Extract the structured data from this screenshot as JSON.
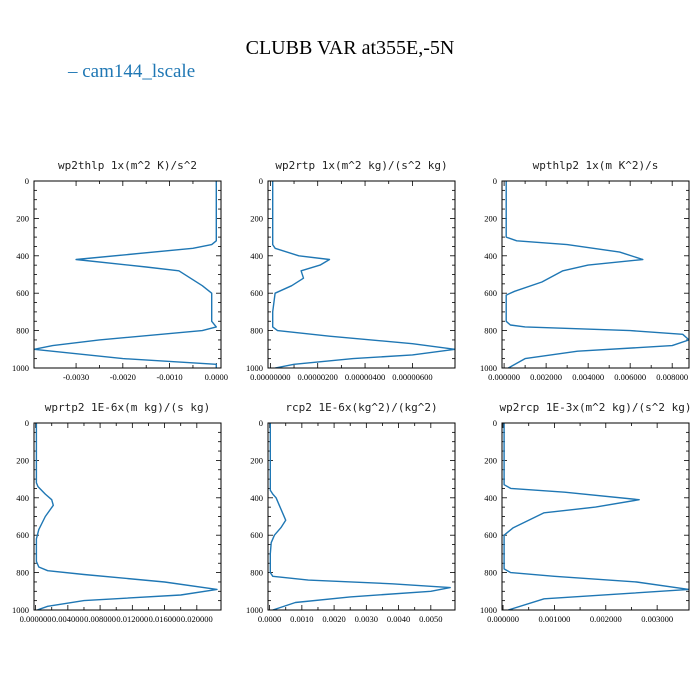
{
  "figure": {
    "title": "CLUBB VAR at355E,-5N",
    "legend": {
      "label": "cam144_lscale",
      "color": "#1f77b4"
    }
  },
  "chart_data": [
    {
      "type": "line",
      "title": "wp2thlp  1x(m^2 K)/s^2",
      "series_name": "cam144_lscale",
      "xlim": [
        -0.0039,
        0.0001
      ],
      "ylim": [
        1000,
        0
      ],
      "xticks": [
        "-0.0030",
        "-0.0020",
        "-0.0010",
        "0.0000"
      ],
      "xtick_values": [
        -0.003,
        -0.002,
        -0.001,
        0.0
      ],
      "yticks": [
        "0",
        "200",
        "400",
        "600",
        "800",
        "1000"
      ],
      "x": [
        0.0,
        0.0,
        0.0,
        -0.0001,
        -0.0005,
        -0.003,
        -0.0015,
        -0.0008,
        -0.0003,
        -0.0001,
        -0.0001,
        0.0,
        -0.0003,
        -0.0025,
        -0.0035,
        -0.0039,
        -0.002,
        0.0,
        0.0
      ],
      "y": [
        0,
        200,
        320,
        340,
        360,
        420,
        460,
        480,
        560,
        600,
        750,
        780,
        800,
        850,
        880,
        900,
        950,
        980,
        1000
      ]
    },
    {
      "type": "line",
      "title": "wp2rtp  1x(m^2 kg)/(s^2 kg)",
      "series_name": "cam144_lscale",
      "xlim": [
        -1e-07,
        7.8e-06
      ],
      "ylim": [
        1000,
        0
      ],
      "xticks": [
        "0.00000000",
        "0.00000200",
        "0.00000400",
        "0.00000600"
      ],
      "xtick_values": [
        0,
        2e-06,
        4e-06,
        6e-06
      ],
      "yticks": [
        "0",
        "200",
        "400",
        "600",
        "800",
        "1000"
      ],
      "x": [
        1e-07,
        1e-07,
        1e-07,
        2e-07,
        1.2e-06,
        2.5e-06,
        2.1e-06,
        1.3e-06,
        1.4e-06,
        9e-07,
        2e-07,
        1e-07,
        1e-07,
        3e-07,
        2.5e-06,
        6e-06,
        7.8e-06,
        6e-06,
        3.5e-06,
        1e-06,
        2e-07
      ],
      "y": [
        0,
        200,
        340,
        360,
        400,
        420,
        450,
        480,
        520,
        560,
        600,
        700,
        780,
        800,
        830,
        870,
        900,
        930,
        950,
        980,
        1000
      ]
    },
    {
      "type": "line",
      "title": "wpthlp2  1x(m K^2)/s",
      "series_name": "cam144_lscale",
      "xlim": [
        -0.0001,
        0.0088
      ],
      "ylim": [
        1000,
        0
      ],
      "xticks": [
        "0.000000",
        "0.002000",
        "0.004000",
        "0.006000",
        "0.008000"
      ],
      "xtick_values": [
        0,
        0.002,
        0.004,
        0.006,
        0.008
      ],
      "yticks": [
        "0",
        "200",
        "400",
        "600",
        "800",
        "1000"
      ],
      "x": [
        0.0001,
        0.0001,
        0.0001,
        0.0006,
        0.003,
        0.0055,
        0.0066,
        0.004,
        0.0028,
        0.0018,
        0.0005,
        0.0001,
        0.0001,
        0.0003,
        0.001,
        0.006,
        0.0085,
        0.0088,
        0.008,
        0.0035,
        0.001,
        0.0002
      ],
      "y": [
        0,
        200,
        300,
        320,
        340,
        380,
        420,
        450,
        480,
        540,
        590,
        610,
        750,
        770,
        780,
        800,
        820,
        850,
        880,
        910,
        950,
        1000
      ]
    },
    {
      "type": "line",
      "title": "wprtp2  1E-6x(m kg)/(s kg)",
      "series_name": "cam144_lscale",
      "xlim": [
        -0.0002,
        0.023
      ],
      "ylim": [
        1000,
        0
      ],
      "xticks": [
        "0.000000",
        "0.004000",
        "0.008000",
        "0.012000",
        "0.016000",
        "0.020000"
      ],
      "xtick_values": [
        0,
        0.004,
        0.008,
        0.012,
        0.016,
        0.02
      ],
      "yticks": [
        "0",
        "200",
        "400",
        "600",
        "800",
        "1000"
      ],
      "x": [
        0.0001,
        0.0001,
        0.0001,
        0.0003,
        0.0012,
        0.002,
        0.0022,
        0.0012,
        0.0004,
        0.0001,
        0.0001,
        0.0004,
        0.0015,
        0.006,
        0.016,
        0.0225,
        0.018,
        0.006,
        0.0015,
        0.0002
      ],
      "y": [
        0,
        200,
        320,
        340,
        380,
        410,
        440,
        500,
        570,
        620,
        740,
        770,
        790,
        810,
        850,
        890,
        920,
        950,
        980,
        1000
      ]
    },
    {
      "type": "line",
      "title": "rcp2  1E-6x(kg^2)/(kg^2)",
      "series_name": "cam144_lscale",
      "xlim": [
        -5e-05,
        0.00575
      ],
      "ylim": [
        1000,
        0
      ],
      "xticks": [
        "0.0000",
        "0.0010",
        "0.0020",
        "0.0030",
        "0.0040",
        "0.0050"
      ],
      "xtick_values": [
        0,
        0.001,
        0.002,
        0.003,
        0.004,
        0.005
      ],
      "yticks": [
        "0",
        "200",
        "400",
        "600",
        "800",
        "1000"
      ],
      "x": [
        2e-05,
        2e-05,
        2e-05,
        0.0001,
        0.0002,
        0.0003,
        0.0005,
        0.00035,
        0.00015,
        5e-05,
        2e-05,
        2e-05,
        0.0001,
        0.0012,
        0.0038,
        0.0056,
        0.005,
        0.0025,
        0.0008,
        0.0001
      ],
      "y": [
        0,
        200,
        360,
        380,
        400,
        440,
        520,
        560,
        600,
        640,
        700,
        800,
        820,
        840,
        860,
        880,
        900,
        930,
        960,
        1000
      ]
    },
    {
      "type": "line",
      "title": "wp2rcp  1E-3x(m^2 kg)/(s^2 kg)",
      "series_name": "cam144_lscale",
      "xlim": [
        -2e-05,
        0.00362
      ],
      "ylim": [
        1000,
        0
      ],
      "xticks": [
        "0.000000",
        "0.001000",
        "0.002000",
        "0.003000"
      ],
      "xtick_values": [
        0,
        0.001,
        0.002,
        0.003
      ],
      "yticks": [
        "0",
        "200",
        "400",
        "600",
        "800",
        "1000"
      ],
      "x": [
        2e-05,
        2e-05,
        2e-05,
        0.00015,
        0.0012,
        0.00265,
        0.0018,
        0.0008,
        0.00065,
        0.0002,
        2e-05,
        2e-05,
        0.00015,
        0.001,
        0.0026,
        0.00362,
        0.0025,
        0.0008,
        0.0001
      ],
      "y": [
        0,
        200,
        330,
        350,
        370,
        410,
        450,
        480,
        500,
        560,
        600,
        780,
        800,
        820,
        850,
        890,
        910,
        940,
        1000
      ]
    }
  ]
}
